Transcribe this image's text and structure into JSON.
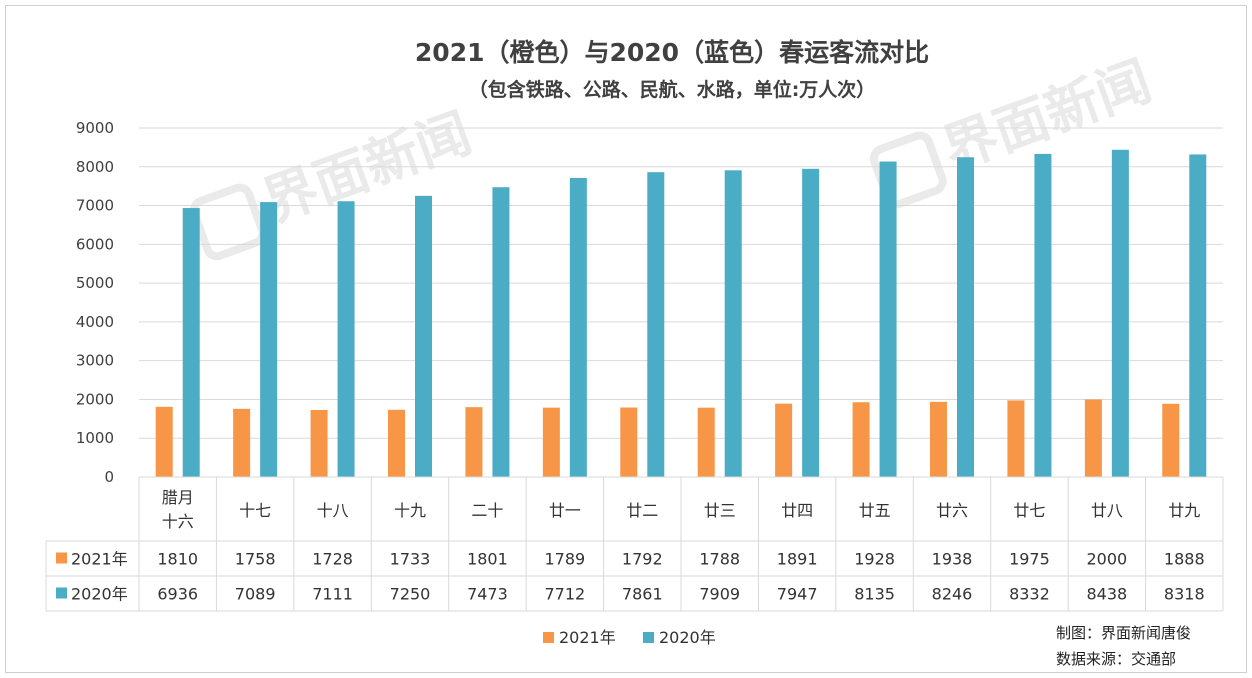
{
  "watermark": "界面新闻",
  "colors": {
    "orange": "#F79646",
    "blue": "#4BACC6",
    "grid": "#d9d9d9"
  },
  "chart_data": {
    "type": "bar",
    "title": "2021（橙色）与2020（蓝色）春运客流对比",
    "subtitle": "（包含铁路、公路、民航、水路，单位:万人次）",
    "categories": [
      "腊月十六",
      "十七",
      "十八",
      "十九",
      "二十",
      "廿一",
      "廿二",
      "廿三",
      "廿四",
      "廿五",
      "廿六",
      "廿七",
      "廿八",
      "廿九"
    ],
    "category_lines": [
      [
        "腊月",
        "十六"
      ],
      [
        "十七"
      ],
      [
        "十八"
      ],
      [
        "十九"
      ],
      [
        "二十"
      ],
      [
        "廿一"
      ],
      [
        "廿二"
      ],
      [
        "廿三"
      ],
      [
        "廿四"
      ],
      [
        "廿五"
      ],
      [
        "廿六"
      ],
      [
        "廿七"
      ],
      [
        "廿八"
      ],
      [
        "廿九"
      ]
    ],
    "series": [
      {
        "name": "2021年",
        "color": "#F79646",
        "values": [
          1810,
          1758,
          1728,
          1733,
          1801,
          1789,
          1792,
          1788,
          1891,
          1928,
          1938,
          1975,
          2000,
          1888
        ]
      },
      {
        "name": "2020年",
        "color": "#4BACC6",
        "values": [
          6936,
          7089,
          7111,
          7250,
          7473,
          7712,
          7861,
          7909,
          7947,
          8135,
          8246,
          8332,
          8438,
          8318
        ]
      }
    ],
    "ylim": [
      0,
      9000
    ],
    "yticks": [
      0,
      1000,
      2000,
      3000,
      4000,
      5000,
      6000,
      7000,
      8000,
      9000
    ],
    "legend": [
      "2021年",
      "2020年"
    ],
    "grid": true,
    "data_table": true
  },
  "footer": {
    "credit": "制图：界面新闻唐俊",
    "source": "数据来源：交通部"
  }
}
